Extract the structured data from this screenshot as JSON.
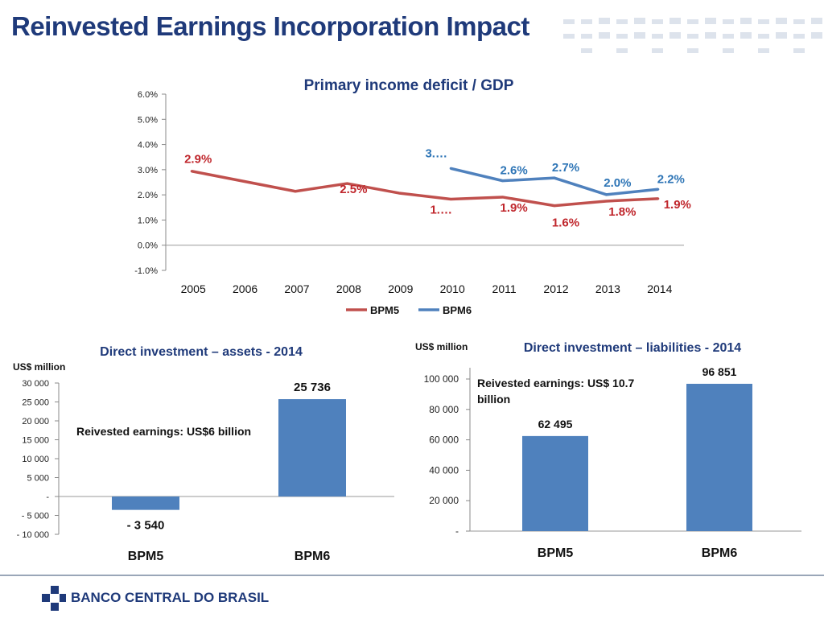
{
  "header": {
    "title": "Reinvested Earnings Incorporation Impact"
  },
  "footer": {
    "logo_text": "BANCO CENTRAL DO BRASIL"
  },
  "colors": {
    "bpm5": "#c0504d",
    "bpm6": "#4f81bd",
    "label_red": "#c0272d",
    "label_blue": "#2e75b6",
    "title": "#1f3a7a"
  },
  "chart_data": [
    {
      "type": "line",
      "title": "Primary income deficit / GDP",
      "x": [
        "2005",
        "2006",
        "2007",
        "2008",
        "2009",
        "2010",
        "2011",
        "2012",
        "2013",
        "2014"
      ],
      "ylim": [
        -0.01,
        0.06
      ],
      "yticks": [
        "-1.0%",
        "0.0%",
        "1.0%",
        "2.0%",
        "3.0%",
        "4.0%",
        "5.0%",
        "6.0%"
      ],
      "legend": "bottom",
      "series": [
        {
          "name": "BPM5",
          "values": [
            0.0294,
            0.0254,
            0.0214,
            0.0245,
            0.0207,
            0.0183,
            0.0191,
            0.0157,
            0.0175,
            0.0185
          ],
          "labels": [
            "2.9%",
            null,
            null,
            "2.5%",
            null,
            "1.…",
            "1.9%",
            "1.6%",
            "1.8%",
            "1.9%"
          ]
        },
        {
          "name": "BPM6",
          "values": [
            null,
            null,
            null,
            null,
            null,
            0.0305,
            0.0256,
            0.0267,
            0.0201,
            0.0222
          ],
          "labels": [
            null,
            null,
            null,
            null,
            null,
            "3.…",
            "2.6%",
            "2.7%",
            "2.0%",
            "2.2%"
          ]
        }
      ]
    },
    {
      "type": "bar",
      "title": "Direct investment – assets - 2014",
      "ylabel": "US$ million",
      "categories": [
        "BPM5",
        "BPM6"
      ],
      "values": [
        -3540,
        25736
      ],
      "value_labels": [
        "- 3 540",
        "25 736"
      ],
      "ylim": [
        -10000,
        30000
      ],
      "yticks": [
        "- 10 000",
        "- 5 000",
        "-",
        "5 000",
        "10 000",
        "15 000",
        "20 000",
        "25 000",
        "30 000"
      ],
      "annotation": "Reivested earnings: US$6 billion"
    },
    {
      "type": "bar",
      "title": "Direct investment – liabilities - 2014",
      "ylabel": "US$ million",
      "categories": [
        "BPM5",
        "BPM6"
      ],
      "values": [
        62495,
        96851
      ],
      "value_labels": [
        "62 495",
        "96 851"
      ],
      "ylim": [
        0,
        100000
      ],
      "yticks": [
        "-",
        "20 000",
        "40 000",
        "60 000",
        "80 000",
        "100 000"
      ],
      "annotation": "Reivested earnings: US$ 10.7 billion"
    }
  ]
}
